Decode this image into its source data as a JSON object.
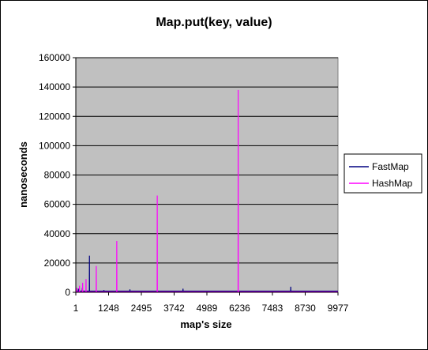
{
  "chart_data": {
    "type": "line",
    "title": "Map.put(key, value)",
    "xlabel": "map's size",
    "ylabel": "nanoseconds",
    "xlim": [
      1,
      9977
    ],
    "ylim": [
      0,
      160000
    ],
    "x_ticks": [
      "1",
      "1248",
      "2495",
      "3742",
      "4989",
      "6236",
      "7483",
      "8730",
      "9977"
    ],
    "y_ticks": [
      "0",
      "20000",
      "40000",
      "60000",
      "80000",
      "100000",
      "120000",
      "140000",
      "160000"
    ],
    "grid": "horizontal",
    "background_color": "#c0c0c0",
    "legend_position": "right",
    "series": [
      {
        "name": "FastMap",
        "color": "#000080",
        "baseline": 800,
        "spikes": [
          {
            "x": 100,
            "y": 2500
          },
          {
            "x": 250,
            "y": 3000
          },
          {
            "x": 520,
            "y": 25000
          },
          {
            "x": 1070,
            "y": 1500
          },
          {
            "x": 2060,
            "y": 2000
          },
          {
            "x": 4080,
            "y": 2500
          },
          {
            "x": 8180,
            "y": 3800
          }
        ]
      },
      {
        "name": "HashMap",
        "color": "#ff00ff",
        "baseline": 300,
        "spikes": [
          {
            "x": 40,
            "y": 3000
          },
          {
            "x": 140,
            "y": 4500
          },
          {
            "x": 260,
            "y": 6500
          },
          {
            "x": 390,
            "y": 9000
          },
          {
            "x": 780,
            "y": 18000
          },
          {
            "x": 1560,
            "y": 35000
          },
          {
            "x": 3100,
            "y": 66000
          },
          {
            "x": 6180,
            "y": 138000
          }
        ]
      }
    ]
  }
}
